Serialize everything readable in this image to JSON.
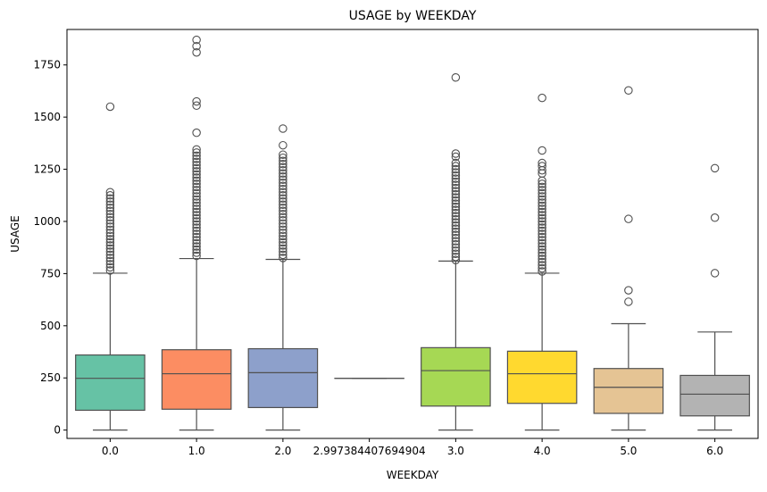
{
  "chart_data": {
    "type": "box",
    "title": "USAGE by WEEKDAY",
    "xlabel": "WEEKDAY",
    "ylabel": "USAGE",
    "ylim": [
      -40,
      1920
    ],
    "yticks": [
      0,
      250,
      500,
      750,
      1000,
      1250,
      1500,
      1750
    ],
    "categories": [
      "0.0",
      "1.0",
      "2.0",
      "2.997384407694904",
      "3.0",
      "4.0",
      "5.0",
      "6.0"
    ],
    "boxes": [
      {
        "category": "0.0",
        "color": "#66c2a5",
        "whisker_low": 0,
        "q1": 95,
        "median": 248,
        "q3": 360,
        "whisker_high": 752,
        "outliers": [
          1550,
          1140,
          1125,
          1110,
          1095,
          1080,
          1065,
          1050,
          1035,
          1020,
          1005,
          990,
          975,
          960,
          945,
          930,
          915,
          900,
          885,
          870,
          855,
          840,
          825,
          810,
          795,
          780,
          765
        ]
      },
      {
        "category": "1.0",
        "color": "#fc8d62",
        "whisker_low": 0,
        "q1": 100,
        "median": 270,
        "q3": 385,
        "whisker_high": 822,
        "outliers": [
          1870,
          1840,
          1810,
          1575,
          1555,
          1425,
          1345,
          1330,
          1315,
          1300,
          1285,
          1270,
          1255,
          1240,
          1225,
          1210,
          1195,
          1180,
          1165,
          1150,
          1135,
          1120,
          1105,
          1090,
          1075,
          1060,
          1045,
          1030,
          1015,
          1000,
          985,
          970,
          955,
          940,
          925,
          910,
          895,
          880,
          865,
          850,
          835
        ]
      },
      {
        "category": "2.0",
        "color": "#8da0cb",
        "whisker_low": 0,
        "q1": 108,
        "median": 275,
        "q3": 390,
        "whisker_high": 818,
        "outliers": [
          1445,
          1365,
          1320,
          1305,
          1290,
          1275,
          1260,
          1245,
          1230,
          1215,
          1200,
          1185,
          1170,
          1155,
          1140,
          1125,
          1110,
          1095,
          1080,
          1065,
          1050,
          1035,
          1020,
          1005,
          990,
          975,
          960,
          945,
          930,
          915,
          900,
          885,
          870,
          855,
          840,
          825
        ]
      },
      {
        "category": "2.997384407694904",
        "color": "#e78ac3",
        "whisker_low": 248,
        "q1": 248,
        "median": 248,
        "q3": 248,
        "whisker_high": 248,
        "outliers": []
      },
      {
        "category": "3.0",
        "color": "#a6d854",
        "whisker_low": 0,
        "q1": 115,
        "median": 285,
        "q3": 395,
        "whisker_high": 810,
        "outliers": [
          1690,
          1325,
          1310,
          1280,
          1265,
          1250,
          1235,
          1220,
          1205,
          1190,
          1175,
          1160,
          1145,
          1130,
          1115,
          1100,
          1085,
          1070,
          1055,
          1040,
          1025,
          1010,
          995,
          980,
          965,
          950,
          935,
          920,
          905,
          890,
          875,
          860,
          845,
          830,
          815
        ]
      },
      {
        "category": "4.0",
        "color": "#ffd92f",
        "whisker_low": 0,
        "q1": 128,
        "median": 270,
        "q3": 378,
        "whisker_high": 752,
        "outliers": [
          1592,
          1340,
          1280,
          1265,
          1245,
          1230,
          1195,
          1180,
          1165,
          1150,
          1135,
          1120,
          1105,
          1090,
          1075,
          1060,
          1045,
          1030,
          1015,
          1000,
          985,
          970,
          955,
          940,
          925,
          910,
          895,
          880,
          865,
          850,
          835,
          820,
          805,
          790,
          775,
          760
        ]
      },
      {
        "category": "5.0",
        "color": "#e5c494",
        "whisker_low": 0,
        "q1": 80,
        "median": 205,
        "q3": 295,
        "whisker_high": 510,
        "outliers": [
          1628,
          1012,
          670,
          615
        ]
      },
      {
        "category": "6.0",
        "color": "#b3b3b3",
        "whisker_low": 0,
        "q1": 68,
        "median": 172,
        "q3": 262,
        "whisker_high": 470,
        "outliers": [
          1255,
          1018,
          752
        ]
      }
    ]
  }
}
